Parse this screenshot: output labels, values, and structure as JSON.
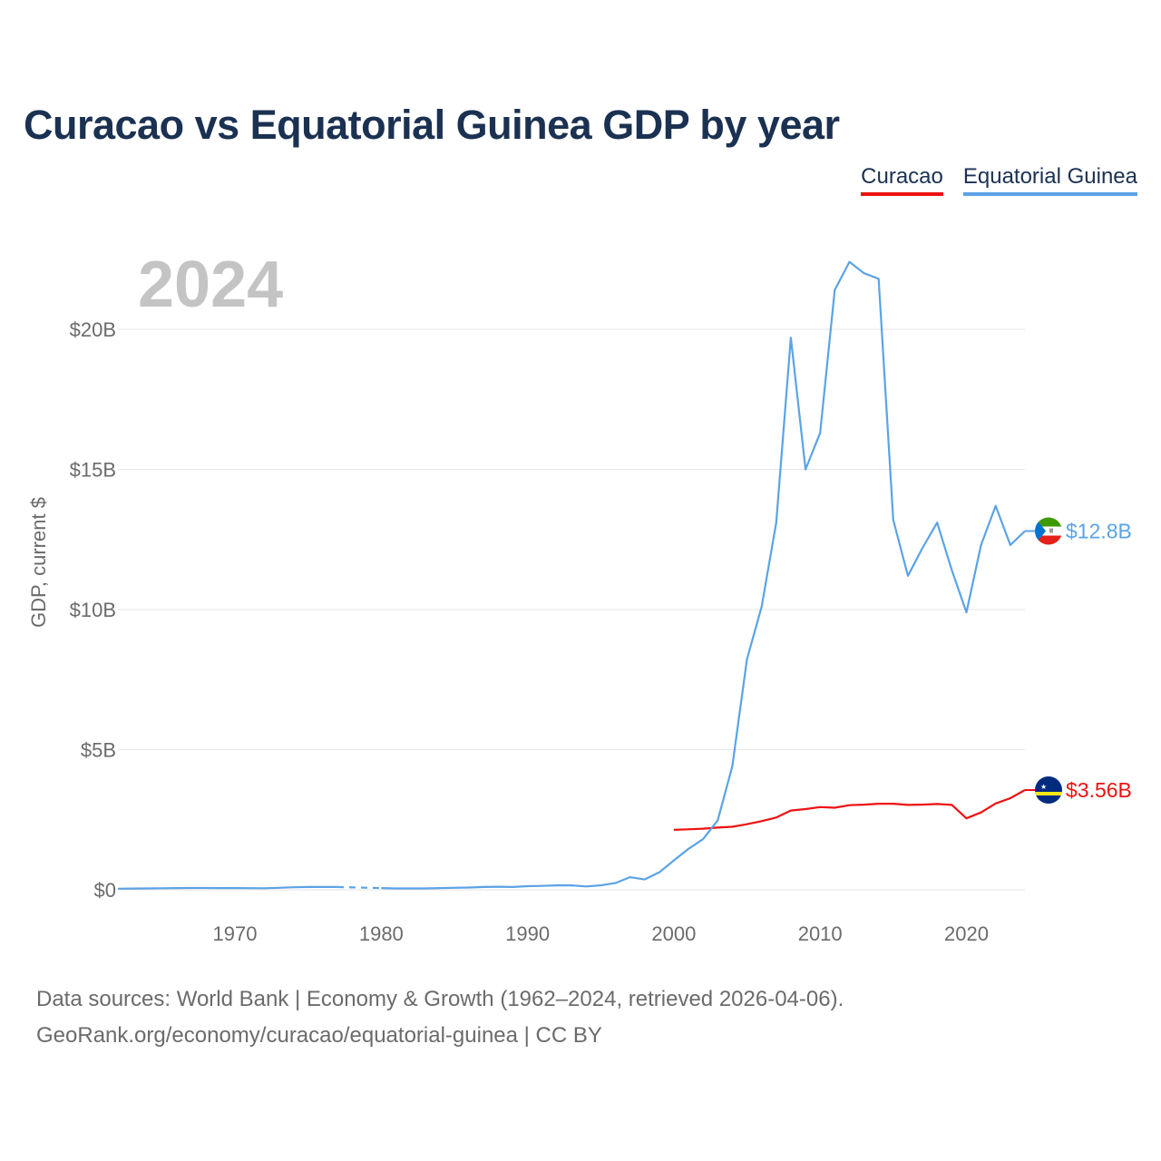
{
  "title": "Curacao vs Equatorial Guinea GDP by year",
  "footer": {
    "line1": "Data sources: World Bank | Economy & Growth (1962–2024, retrieved 2026-04-06).",
    "line2": "GeoRank.org/economy/curacao/equatorial-guinea | CC BY"
  },
  "colors": {
    "curacao": "#ee1111",
    "equatorial_guinea": "#5ba3e6",
    "grid": "#e6e6e6"
  },
  "chart_data": {
    "type": "line",
    "title": "Curacao vs Equatorial Guinea GDP by year",
    "current_year": "2024",
    "xlabel": "",
    "ylabel": "GDP, current $",
    "xlim": [
      1962,
      2024
    ],
    "ylim": [
      0,
      20
    ],
    "y_ticks": [
      0,
      5,
      10,
      15,
      20
    ],
    "y_tick_labels": [
      "$0",
      "$5B",
      "$10B",
      "$15B",
      "$20B"
    ],
    "x_ticks": [
      1970,
      1980,
      1990,
      2000,
      2010,
      2020
    ],
    "x_tick_labels": [
      "1970",
      "1980",
      "1990",
      "2000",
      "2010",
      "2020"
    ],
    "units": "billions of current US$",
    "legend": [
      "Curacao",
      "Equatorial Guinea"
    ],
    "legend_position": "top-right",
    "series": [
      {
        "name": "Curacao",
        "color": "#ee1111",
        "end_label": "$3.56B",
        "flag_icon": "curacao-flag-icon",
        "x": [
          2000,
          2001,
          2002,
          2003,
          2004,
          2005,
          2006,
          2007,
          2008,
          2009,
          2010,
          2011,
          2012,
          2013,
          2014,
          2015,
          2016,
          2017,
          2018,
          2019,
          2020,
          2021,
          2022,
          2023,
          2024
        ],
        "values": [
          2.14,
          2.16,
          2.18,
          2.22,
          2.25,
          2.34,
          2.45,
          2.58,
          2.83,
          2.88,
          2.95,
          2.93,
          3.02,
          3.04,
          3.07,
          3.07,
          3.03,
          3.04,
          3.06,
          3.03,
          2.55,
          2.76,
          3.08,
          3.27,
          3.56
        ]
      },
      {
        "name": "Equatorial Guinea",
        "color": "#5ba3e6",
        "end_label": "$12.8B",
        "flag_icon": "equatorial-guinea-flag-icon",
        "gap": [
          1977,
          1980
        ],
        "x": [
          1962,
          1963,
          1964,
          1965,
          1966,
          1967,
          1968,
          1969,
          1970,
          1971,
          1972,
          1973,
          1974,
          1975,
          1976,
          1977,
          1980,
          1981,
          1982,
          1983,
          1984,
          1985,
          1986,
          1987,
          1988,
          1989,
          1990,
          1991,
          1992,
          1993,
          1994,
          1995,
          1996,
          1997,
          1998,
          1999,
          2000,
          2001,
          2002,
          2003,
          2004,
          2005,
          2006,
          2007,
          2008,
          2009,
          2010,
          2011,
          2012,
          2013,
          2014,
          2015,
          2016,
          2017,
          2018,
          2019,
          2020,
          2021,
          2022,
          2023,
          2024
        ],
        "values": [
          0.04,
          0.045,
          0.05,
          0.055,
          0.06,
          0.065,
          0.065,
          0.06,
          0.06,
          0.058,
          0.055,
          0.07,
          0.09,
          0.1,
          0.1,
          0.1,
          0.06,
          0.05,
          0.05,
          0.05,
          0.06,
          0.07,
          0.08,
          0.1,
          0.11,
          0.1,
          0.13,
          0.14,
          0.16,
          0.16,
          0.12,
          0.16,
          0.24,
          0.45,
          0.37,
          0.62,
          1.05,
          1.46,
          1.81,
          2.48,
          4.41,
          8.22,
          10.1,
          13.1,
          19.7,
          15.0,
          16.3,
          21.4,
          22.4,
          22.0,
          21.8,
          13.2,
          11.2,
          12.2,
          13.1,
          11.4,
          9.9,
          12.3,
          13.7,
          12.3,
          12.8
        ]
      }
    ]
  }
}
